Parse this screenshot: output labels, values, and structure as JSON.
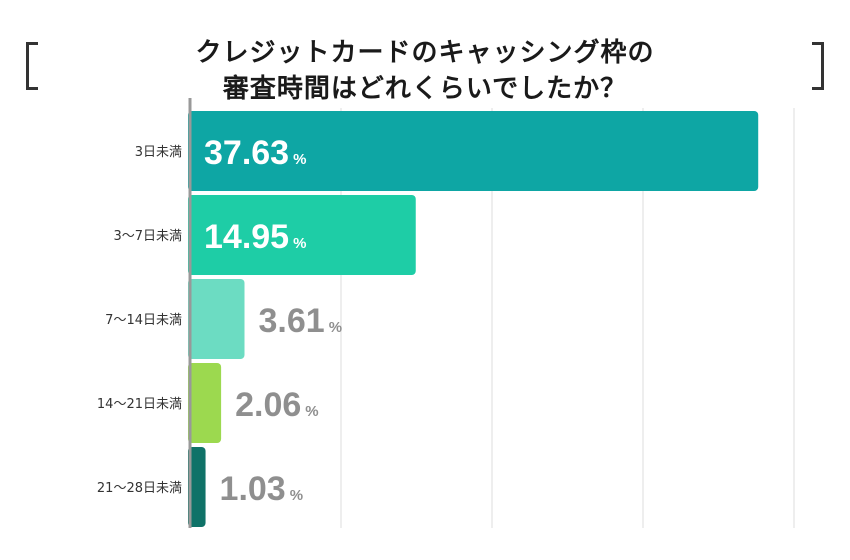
{
  "title_lines": [
    "クレジットカードのキャッシング枠の",
    "審査時間はどれくらいでしたか？"
  ],
  "colors": {
    "bars": [
      "#0ea6a4",
      "#1ecda6",
      "#6cdcc2",
      "#9cd94f",
      "#0f7268"
    ],
    "label_inside": "#ffffff",
    "label_outside": "#8f8f8f",
    "grid": "#dddddd",
    "axis": "#999999"
  },
  "chart_data": {
    "type": "bar",
    "orientation": "horizontal",
    "categories": [
      "3日未満",
      "3〜7日未満",
      "7〜14日未満",
      "14〜21日未満",
      "21〜28日未満"
    ],
    "values": [
      37.63,
      14.95,
      3.61,
      2.06,
      1.03
    ],
    "value_suffix": "%",
    "xlim": [
      0,
      40
    ],
    "grid": true
  }
}
